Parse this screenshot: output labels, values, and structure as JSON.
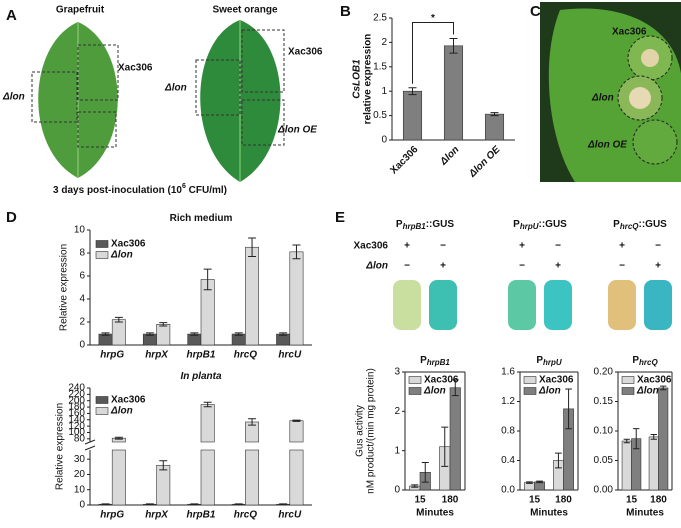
{
  "figure": {
    "letters": [
      "A",
      "B",
      "C",
      "D",
      "E"
    ],
    "a": {
      "hosts": [
        "Grapefruit",
        "Sweet orange"
      ],
      "labels": [
        "Δlon",
        "Xac306",
        "Xac306",
        "Δlon",
        "Δlon OE"
      ],
      "caption": [
        "3 days post-inoculation (10",
        "6",
        " CFU/ml)"
      ]
    },
    "c": {
      "labels": [
        "Xac306",
        "Δlon",
        "Δlon OE"
      ]
    },
    "e": {
      "constructs": [
        {
          "p": "P",
          "sub": "hrpB1",
          "suffix": "::GUS"
        },
        {
          "p": "P",
          "sub": "hrpU",
          "suffix": "::GUS"
        },
        {
          "p": "P",
          "sub": "hrcQ",
          "suffix": "::GUS"
        }
      ],
      "rows": [
        "Xac306",
        "Δlon"
      ],
      "signs": [
        [
          [
            "+",
            "−"
          ],
          [
            "−",
            "+"
          ]
        ],
        [
          [
            "+",
            "−"
          ],
          [
            "−",
            "+"
          ]
        ],
        [
          [
            "+",
            "−"
          ],
          [
            "−",
            "+"
          ]
        ]
      ]
    }
  },
  "chart_data": [
    {
      "type": "bar",
      "ylabel": [
        "CsLOB1",
        "relative expression"
      ],
      "categories": [
        "Xac306",
        "Δlon",
        "Δlon OE"
      ],
      "values": [
        1.0,
        1.93,
        0.53
      ],
      "errors": [
        0.07,
        0.15,
        0.03
      ],
      "color": "#7f7f7f",
      "ylim": [
        0,
        2.5
      ],
      "yticks": [
        0,
        0.5,
        1,
        1.5,
        2,
        2.5
      ],
      "annotation": "*"
    },
    {
      "type": "bar",
      "title": "Rich medium",
      "ylabel": [
        "Relative expression"
      ],
      "categories": [
        "hrpG",
        "hrpX",
        "hrpB1",
        "hrcQ",
        "hrcU"
      ],
      "series": [
        {
          "name": "Xac306",
          "color": "#595959",
          "values": [
            0.95,
            0.95,
            0.95,
            0.95,
            0.95
          ],
          "errors": [
            0.1,
            0.1,
            0.1,
            0.1,
            0.1
          ]
        },
        {
          "name": "Δlon",
          "color": "#d9d9d9",
          "values": [
            2.2,
            1.8,
            5.7,
            8.5,
            8.1
          ],
          "errors": [
            0.2,
            0.15,
            0.9,
            0.8,
            0.6
          ]
        }
      ],
      "ylim": [
        0,
        10
      ],
      "yticks": [
        0,
        2,
        4,
        6,
        8,
        10
      ]
    },
    {
      "type": "broken-bar",
      "title": "In planta",
      "ylabel": [
        "Relative expression"
      ],
      "categories": [
        "hrpG",
        "hrpX",
        "hrpB1",
        "hrcQ",
        "hrcU"
      ],
      "series": [
        {
          "name": "Xac306",
          "color": "#595959",
          "values": [
            0.5,
            0.5,
            0.5,
            0.5,
            0.5
          ],
          "errors": [
            0.2,
            0.2,
            0.2,
            0.2,
            0.2
          ]
        },
        {
          "name": "Δlon",
          "color": "#d9d9d9",
          "values": [
            82,
            26,
            188,
            133,
            137
          ],
          "errors": [
            3,
            3,
            7,
            10,
            2
          ]
        }
      ],
      "ylim_lower": [
        0,
        36
      ],
      "yticks_lower": [
        0,
        10,
        20,
        30
      ],
      "ylim_upper": [
        70,
        240
      ],
      "yticks_upper": [
        80,
        100,
        120,
        140,
        160,
        180,
        200,
        220,
        240
      ]
    },
    {
      "type": "bar",
      "title": "P",
      "title_sub": "hrpB1",
      "ylabel": [
        "Gus activity",
        "nM product/(min mg protein)"
      ],
      "xlabel": "Minutes",
      "categories": [
        "15",
        "180"
      ],
      "series": [
        {
          "name": "Xac306",
          "color": "#d9d9d9",
          "values": [
            0.1,
            1.1
          ],
          "errors": [
            0.03,
            0.5
          ]
        },
        {
          "name": "Δlon",
          "color": "#7f7f7f",
          "values": [
            0.45,
            2.6
          ],
          "errors": [
            0.25,
            0.2
          ]
        }
      ],
      "ylim": [
        0,
        3
      ],
      "yticks": [
        0,
        1,
        2,
        3
      ]
    },
    {
      "type": "bar",
      "title": "P",
      "title_sub": "hrpU",
      "xlabel": "Minutes",
      "categories": [
        "15",
        "180"
      ],
      "series": [
        {
          "name": "Xac306",
          "color": "#d9d9d9",
          "values": [
            0.1,
            0.4
          ],
          "errors": [
            0.01,
            0.1
          ]
        },
        {
          "name": "Δlon",
          "color": "#7f7f7f",
          "values": [
            0.11,
            1.1
          ],
          "errors": [
            0.01,
            0.27
          ]
        }
      ],
      "ylim": [
        0,
        1.6
      ],
      "yticks": [
        {
          "value": 0,
          "label": "0.0"
        },
        0.4,
        0.8,
        1.2,
        1.6
      ]
    },
    {
      "type": "bar",
      "title": "P",
      "title_sub": "hrcQ",
      "xlabel": "Minutes",
      "categories": [
        "15",
        "180"
      ],
      "series": [
        {
          "name": "Xac306",
          "color": "#d9d9d9",
          "values": [
            0.083,
            0.09
          ],
          "errors": [
            0.003,
            0.004
          ]
        },
        {
          "name": "Δlon",
          "color": "#7f7f7f",
          "values": [
            0.087,
            0.173
          ],
          "errors": [
            0.017,
            0.003
          ]
        }
      ],
      "ylim": [
        0,
        0.2
      ],
      "yticks": [
        {
          "value": 0,
          "label": "0.00"
        },
        0.05,
        {
          "value": 0.1,
          "label": "0.10"
        },
        0.15,
        {
          "value": 0.2,
          "label": "0.20"
        }
      ]
    }
  ]
}
